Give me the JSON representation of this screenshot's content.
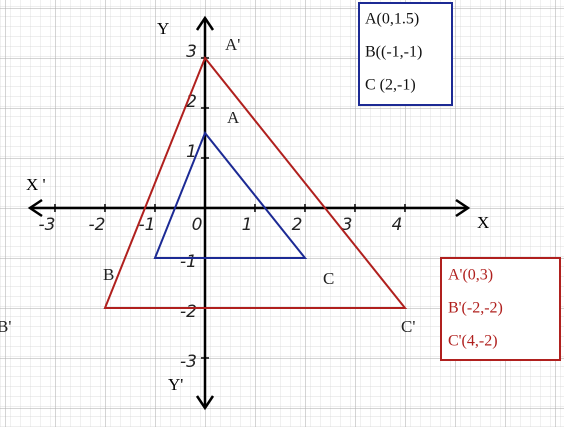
{
  "axes": {
    "x_label": "X",
    "x_prime_label": "X '",
    "y_label": "Y",
    "y_prime_label": "Y'",
    "x_ticks": [
      -3,
      -2,
      -1,
      0,
      1,
      2,
      3,
      4
    ],
    "y_ticks": [
      3,
      2,
      1,
      -1,
      -2,
      -3
    ]
  },
  "triangles": [
    {
      "color": "#1c2a94",
      "vertices": [
        {
          "label": "A",
          "x": 0,
          "y": 1.5
        },
        {
          "label": "B",
          "x": -1,
          "y": -1
        },
        {
          "label": "C",
          "x": 2,
          "y": -1
        }
      ],
      "legend": [
        "A(0,1.5)",
        "B((-1,-1)",
        "C (2,-1)"
      ]
    },
    {
      "color": "#b0201e",
      "vertices": [
        {
          "label": "A'",
          "x": 0,
          "y": 3
        },
        {
          "label": "B'",
          "x": -2,
          "y": -2
        },
        {
          "label": "C'",
          "x": 4,
          "y": -2
        }
      ],
      "legend": [
        "A'(0,3)",
        "B'(-2,-2)",
        "C'(4,-2)"
      ]
    }
  ]
}
